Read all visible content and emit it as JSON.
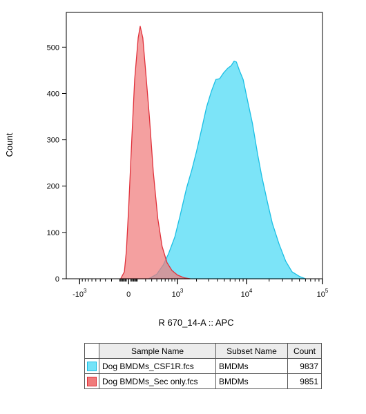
{
  "chart_data": {
    "type": "area",
    "xlabel": "R 670_14-A :: APC",
    "ylabel": "Count",
    "x_scale": "biexponential",
    "y_ticks": [
      0,
      100,
      200,
      300,
      400,
      500
    ],
    "ylim": [
      0,
      575
    ],
    "x_ticks": [
      {
        "value": -1000,
        "base": "-10",
        "exp": "3"
      },
      {
        "value": 0,
        "base": "0",
        "exp": ""
      },
      {
        "value": 1000,
        "base": "10",
        "exp": "3"
      },
      {
        "value": 10000,
        "base": "10",
        "exp": "4"
      },
      {
        "value": 100000,
        "base": "10",
        "exp": "5"
      }
    ],
    "series": [
      {
        "name": "Dog BMDMs_Sec only.fcs",
        "fill": "#f07b7b",
        "stroke": "#e0303a",
        "points": [
          [
            -80,
            0
          ],
          [
            -40,
            15
          ],
          [
            -20,
            60
          ],
          [
            0,
            150
          ],
          [
            30,
            300
          ],
          [
            60,
            430
          ],
          [
            100,
            520
          ],
          [
            125,
            545
          ],
          [
            160,
            520
          ],
          [
            200,
            450
          ],
          [
            260,
            350
          ],
          [
            330,
            230
          ],
          [
            420,
            130
          ],
          [
            520,
            70
          ],
          [
            650,
            35
          ],
          [
            800,
            18
          ],
          [
            1000,
            8
          ],
          [
            1300,
            2
          ],
          [
            1600,
            0
          ]
        ]
      },
      {
        "name": "Dog BMDMs_CSF1R.fcs",
        "fill": "#75e3f8",
        "stroke": "#1bbfe4",
        "points": [
          [
            250,
            0
          ],
          [
            400,
            10
          ],
          [
            550,
            30
          ],
          [
            700,
            55
          ],
          [
            900,
            90
          ],
          [
            1100,
            135
          ],
          [
            1400,
            195
          ],
          [
            1700,
            235
          ],
          [
            2000,
            275
          ],
          [
            2400,
            325
          ],
          [
            2800,
            370
          ],
          [
            3300,
            405
          ],
          [
            3800,
            430
          ],
          [
            4300,
            432
          ],
          [
            4900,
            445
          ],
          [
            5600,
            455
          ],
          [
            6200,
            460
          ],
          [
            6800,
            470
          ],
          [
            7300,
            468
          ],
          [
            8000,
            450
          ],
          [
            9000,
            430
          ],
          [
            10000,
            395
          ],
          [
            12000,
            335
          ],
          [
            14000,
            270
          ],
          [
            16000,
            220
          ],
          [
            19000,
            165
          ],
          [
            22000,
            120
          ],
          [
            27000,
            75
          ],
          [
            33000,
            38
          ],
          [
            40000,
            15
          ],
          [
            50000,
            5
          ],
          [
            60000,
            0
          ]
        ]
      }
    ]
  },
  "legend": {
    "headers": [
      "Sample Name",
      "Subset Name",
      "Count"
    ],
    "rows": [
      {
        "sample": "Dog BMDMs_CSF1R.fcs",
        "subset": "BMDMs",
        "count": "9837",
        "color": "#75e3f8",
        "border": "#1bbfe4"
      },
      {
        "sample": "Dog BMDMs_Sec only.fcs",
        "subset": "BMDMs",
        "count": "9851",
        "color": "#f07b7b",
        "border": "#e0303a"
      }
    ]
  }
}
